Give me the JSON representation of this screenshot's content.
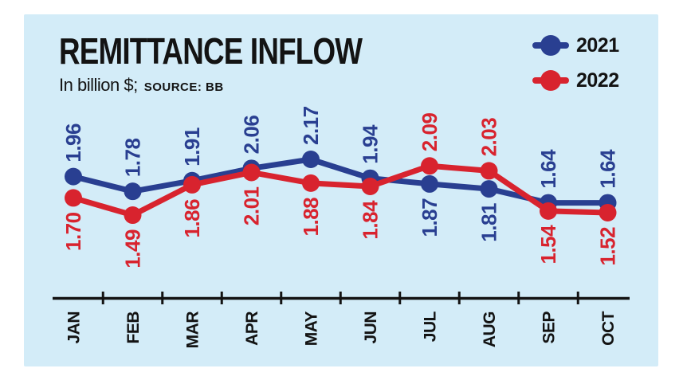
{
  "header": {
    "title": "REMITTANCE INFLOW",
    "subtitle_main": "In billion $;",
    "subtitle_source": "SOURCE: BB"
  },
  "legend": {
    "position": "top-right",
    "items": [
      {
        "label": "2021",
        "color": "#293f91",
        "marker": "circle-on-line"
      },
      {
        "label": "2022",
        "color": "#d8232e",
        "marker": "circle-on-line"
      }
    ]
  },
  "chart_data": {
    "type": "line",
    "title": "REMITTANCE INFLOW",
    "unit_label": "In billion $",
    "source_label": "SOURCE: BB",
    "categories": [
      "JAN",
      "FEB",
      "MAR",
      "APR",
      "MAY",
      "JUN",
      "JUL",
      "AUG",
      "SEP",
      "OCT"
    ],
    "series": [
      {
        "name": "2021",
        "color": "#293f91",
        "values": [
          1.96,
          1.78,
          1.91,
          2.06,
          2.17,
          1.94,
          1.87,
          1.81,
          1.64,
          1.64
        ]
      },
      {
        "name": "2022",
        "color": "#d8232e",
        "values": [
          1.7,
          1.49,
          1.86,
          2.01,
          1.88,
          1.84,
          2.09,
          2.03,
          1.54,
          1.52
        ]
      }
    ],
    "ylim": [
      1.4,
      2.3
    ],
    "grid": false,
    "y_axis_shown": false,
    "data_labels": true,
    "data_label_rotation_deg": 90,
    "x_label_rotation_deg": 90,
    "legend_position": "top-right"
  },
  "colors": {
    "page_background": "#ffffff",
    "panel_background": "#d3ecf8",
    "text": "#131313",
    "axis": "#131313",
    "series_2021": "#293f91",
    "series_2022": "#d8232e"
  }
}
